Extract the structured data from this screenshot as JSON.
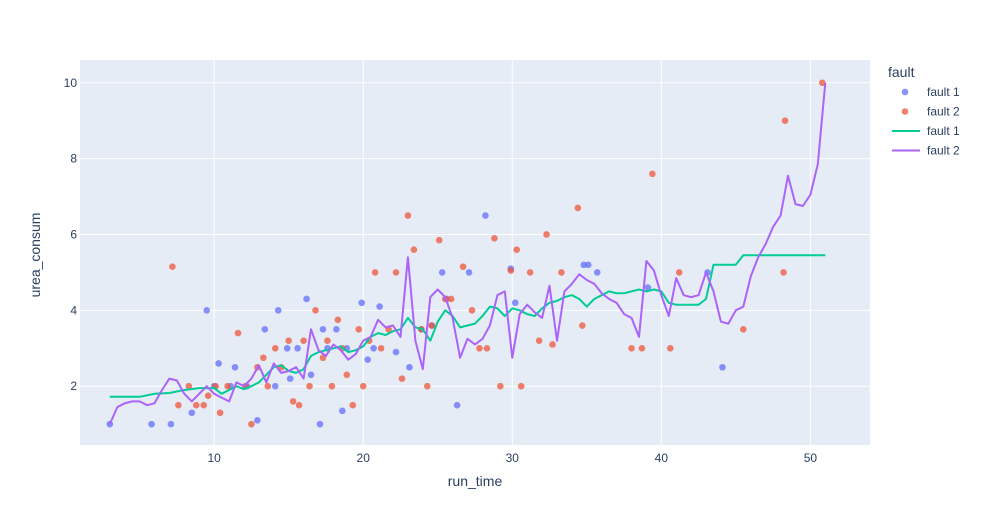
{
  "chart_data": {
    "type": "scatter",
    "xlabel": "run_time",
    "ylabel": "urea_consum",
    "xlim": [
      1,
      54
    ],
    "ylim": [
      0.45,
      10.6
    ],
    "x_ticks": [
      10,
      20,
      30,
      40,
      50
    ],
    "y_ticks": [
      2,
      4,
      6,
      8,
      10
    ],
    "grid": true,
    "legend_position": "right",
    "legend_title": "fault",
    "colors": {
      "plot_bg": "#e5ecf6",
      "grid": "#ffffff",
      "fault1_points": "#636efa",
      "fault2_points": "#ef553b",
      "fault1_line": "#00cc96",
      "fault2_line": "#ab63fa"
    },
    "series": [
      {
        "name": "fault 1",
        "kind": "markers",
        "x": [
          3,
          5.8,
          7.1,
          8.5,
          9.5,
          10,
          10.3,
          11.1,
          11.4,
          12.2,
          12.9,
          13.4,
          14.1,
          14.3,
          14.9,
          15.1,
          15.6,
          16.2,
          16.5,
          17.1,
          17.3,
          17.6,
          18.2,
          18.6,
          18.9,
          19.9,
          20.3,
          20.7,
          21.1,
          22.2,
          23.1,
          23.9,
          24.6,
          25.3,
          25.6,
          26.3,
          27.1,
          28.2,
          29.9,
          30.2,
          34.8,
          35.1,
          35.7,
          39.1,
          43.1,
          44.1
        ],
        "y": [
          1,
          1,
          1,
          1.3,
          4,
          2,
          2.6,
          2,
          2.5,
          2,
          1.1,
          3.5,
          2,
          4,
          3,
          2.2,
          3,
          4.3,
          2.3,
          1,
          3.5,
          3,
          3.5,
          1.35,
          3,
          4.2,
          2.7,
          3,
          4.1,
          2.9,
          2.5,
          3.5,
          3.6,
          5,
          4.3,
          1.5,
          5,
          6.5,
          5.1,
          4.2,
          5.2,
          5.2,
          5,
          4.6,
          5,
          2.5
        ]
      },
      {
        "name": "fault 2",
        "kind": "markers",
        "x": [
          7.2,
          7.6,
          8.3,
          8.8,
          9.3,
          9.6,
          10.1,
          10.4,
          10.9,
          11.6,
          12.1,
          12.5,
          12.9,
          13.3,
          13.6,
          14.1,
          14.5,
          15.0,
          15.3,
          15.7,
          16.0,
          16.4,
          16.8,
          17.3,
          17.6,
          17.9,
          18.3,
          18.6,
          18.9,
          19.3,
          19.7,
          20.0,
          20.4,
          20.8,
          21.2,
          21.7,
          22.2,
          22.6,
          23.0,
          23.4,
          23.9,
          24.3,
          24.6,
          25.1,
          25.5,
          25.9,
          26.7,
          27.3,
          27.8,
          28.3,
          28.8,
          29.2,
          29.9,
          30.3,
          30.6,
          31.2,
          31.8,
          32.3,
          32.7,
          33.3,
          34.4,
          34.7,
          38.0,
          38.7,
          39.4,
          40.6,
          41.2,
          45.5,
          48.2,
          48.3,
          50.8
        ],
        "y": [
          5.15,
          1.5,
          2.0,
          1.5,
          1.5,
          1.75,
          2.0,
          1.3,
          2.0,
          3.4,
          2.0,
          1.0,
          2.5,
          2.75,
          2.0,
          3.0,
          2.5,
          3.2,
          1.6,
          1.5,
          3.2,
          2.0,
          4.0,
          2.75,
          3.2,
          2.0,
          3.75,
          3.0,
          2.3,
          1.5,
          3.5,
          2.0,
          3.2,
          5.0,
          3.0,
          3.5,
          5.0,
          2.2,
          6.5,
          5.6,
          3.5,
          2.0,
          3.6,
          5.85,
          4.3,
          4.3,
          5.15,
          4.0,
          3.0,
          3.0,
          5.9,
          2.0,
          5.05,
          5.6,
          2.0,
          5.0,
          3.2,
          6.0,
          3.1,
          5.0,
          6.7,
          3.6,
          3.0,
          3.0,
          7.6,
          3.0,
          5.0,
          3.5,
          5.0,
          9.0,
          10.0
        ]
      },
      {
        "name": "fault 1",
        "kind": "line",
        "x": [
          3,
          4,
          5,
          6,
          7,
          8,
          9,
          10,
          10.5,
          11,
          11.5,
          12,
          12.5,
          13,
          13.5,
          14,
          14.5,
          15,
          15.5,
          16,
          16.5,
          17,
          17.5,
          18,
          18.5,
          19,
          19.5,
          20,
          20.5,
          21,
          21.5,
          22,
          22.5,
          23,
          23.5,
          24,
          24.5,
          25,
          25.5,
          26,
          26.5,
          27,
          27.5,
          28,
          28.5,
          29,
          29.5,
          30,
          30.5,
          31,
          31.5,
          32,
          32.5,
          33,
          33.5,
          34,
          34.5,
          35,
          35.5,
          36,
          36.5,
          37,
          37.5,
          38,
          38.5,
          39,
          39.5,
          40,
          40.5,
          41,
          41.5,
          42,
          42.5,
          43,
          43.5,
          44,
          44.5,
          45,
          45.5,
          46,
          47,
          48,
          49,
          50,
          51
        ],
        "y": [
          1.72,
          1.72,
          1.72,
          1.8,
          1.82,
          1.9,
          1.95,
          1.95,
          1.8,
          1.9,
          2.0,
          1.92,
          2.0,
          2.1,
          2.3,
          2.5,
          2.55,
          2.4,
          2.35,
          2.45,
          2.8,
          2.9,
          2.95,
          3.0,
          3.05,
          2.9,
          2.95,
          3.05,
          3.3,
          3.4,
          3.35,
          3.45,
          3.5,
          3.8,
          3.55,
          3.5,
          3.2,
          3.7,
          4.0,
          3.85,
          3.55,
          3.6,
          3.65,
          3.85,
          4.1,
          4.05,
          3.85,
          4.05,
          4.0,
          3.9,
          3.85,
          4.05,
          4.2,
          4.25,
          4.35,
          4.4,
          4.3,
          4.1,
          4.3,
          4.4,
          4.5,
          4.45,
          4.45,
          4.5,
          4.55,
          4.5,
          4.55,
          4.5,
          4.2,
          4.15,
          4.15,
          4.15,
          4.15,
          4.3,
          5.2,
          5.2,
          5.2,
          5.2,
          5.45,
          5.45,
          5.45,
          5.45,
          5.45,
          5.45,
          5.45
        ]
      },
      {
        "name": "fault 2",
        "kind": "line",
        "x": [
          3,
          3.5,
          4,
          4.5,
          5,
          5.5,
          6,
          6.5,
          7,
          7.5,
          8,
          8.5,
          9,
          9.5,
          10,
          10.5,
          11,
          11.5,
          12,
          12.5,
          13,
          13.5,
          14,
          14.5,
          15,
          15.5,
          16,
          16.5,
          17,
          17.5,
          18,
          18.5,
          19,
          19.5,
          20,
          20.5,
          21,
          21.5,
          22,
          22.5,
          23,
          23.5,
          24,
          24.5,
          25,
          25.5,
          26,
          26.5,
          27,
          27.5,
          28,
          28.5,
          29,
          29.5,
          30,
          30.5,
          31,
          31.5,
          32,
          32.5,
          33,
          33.5,
          34,
          34.5,
          35,
          35.5,
          36,
          36.5,
          37,
          37.5,
          38,
          38.5,
          39,
          39.5,
          40,
          40.5,
          41,
          41.5,
          42,
          42.5,
          43,
          43.5,
          44,
          44.5,
          45,
          45.5,
          46,
          46.5,
          47,
          47.5,
          48,
          48.5,
          49,
          49.5,
          50,
          50.5,
          51
        ],
        "y": [
          1.0,
          1.45,
          1.55,
          1.6,
          1.6,
          1.5,
          1.55,
          1.9,
          2.2,
          2.15,
          1.8,
          1.6,
          1.8,
          2.0,
          1.8,
          1.7,
          1.6,
          2.1,
          2.0,
          2.2,
          2.55,
          2.1,
          2.6,
          2.35,
          2.4,
          2.5,
          2.2,
          3.5,
          2.95,
          2.8,
          3.1,
          2.95,
          2.7,
          2.85,
          3.2,
          3.3,
          3.75,
          3.55,
          3.6,
          3.3,
          5.4,
          3.2,
          2.45,
          4.35,
          4.55,
          4.35,
          3.8,
          2.75,
          3.25,
          3.1,
          3.25,
          3.6,
          4.4,
          4.5,
          2.75,
          3.9,
          4.15,
          3.95,
          3.8,
          4.65,
          3.2,
          4.5,
          4.7,
          4.95,
          4.8,
          4.7,
          4.45,
          4.3,
          4.2,
          3.9,
          3.8,
          3.3,
          5.3,
          5.05,
          4.4,
          3.85,
          4.85,
          4.4,
          4.35,
          4.4,
          5.0,
          4.5,
          3.7,
          3.65,
          4.0,
          4.1,
          4.9,
          5.4,
          5.75,
          6.2,
          6.5,
          7.55,
          6.8,
          6.75,
          7.05,
          7.85,
          10.0
        ]
      }
    ]
  }
}
